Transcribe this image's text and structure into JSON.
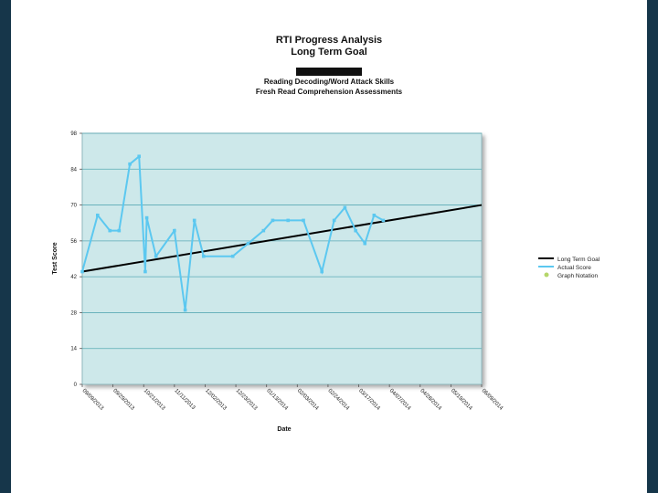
{
  "chart_data": {
    "type": "line",
    "title": "RTI Progress Analysis",
    "subtitle_lines": [
      "Long Term Goal",
      "Reading Decoding/Word Attack Skills",
      "Fresh Read Comprehension Assessments"
    ],
    "redacted_name": "XXXXXXXXXXXXX",
    "xlabel": "Date",
    "ylabel": "Test Score",
    "yticks": [
      0,
      14,
      28,
      42,
      56,
      70,
      84,
      98
    ],
    "ylim": [
      0,
      98
    ],
    "xticks": [
      "09/09/2013",
      "09/29/2013",
      "10/21/2013",
      "11/11/2013",
      "12/02/2013",
      "12/23/2013",
      "01/13/2014",
      "02/03/2014",
      "02/24/2014",
      "03/17/2014",
      "04/07/2014",
      "04/28/2014",
      "05/19/2014",
      "06/09/2014"
    ],
    "grid": true,
    "legend_position": "right",
    "legend": [
      "Long Term Goal",
      "Actual Score",
      "Graph Notation"
    ],
    "colors": {
      "goal": "#000000",
      "actual": "#5cc8f0",
      "notation": "#b5d66a",
      "plot_bg": "#cde8ea",
      "grid": "#5aaab5"
    },
    "series": [
      {
        "name": "Long Term Goal",
        "x": [
          0,
          13
        ],
        "y": [
          44,
          70
        ]
      },
      {
        "name": "Actual Score",
        "x": [
          0,
          0.5,
          0.9,
          1.2,
          1.55,
          1.85,
          2.05,
          2.1,
          2.4,
          3.0,
          3.35,
          3.65,
          3.95,
          4.9,
          5.4,
          5.9,
          6.2,
          6.7,
          7.2,
          7.8,
          8.2,
          8.55,
          8.9,
          9.2,
          9.5,
          9.8
        ],
        "y": [
          44,
          66,
          60,
          60,
          86,
          89,
          44,
          65,
          50,
          60,
          29,
          64,
          50,
          50,
          55,
          60,
          64,
          64,
          64,
          44,
          64,
          69,
          60,
          55,
          66,
          64
        ]
      }
    ]
  }
}
